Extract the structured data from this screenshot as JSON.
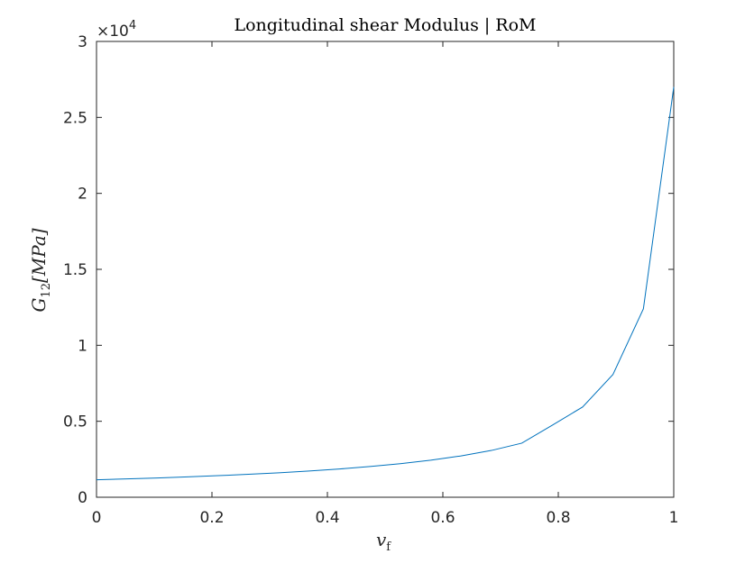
{
  "chart_data": {
    "type": "line",
    "title": "Longitudinal shear Modulus | RoM",
    "xlabel": {
      "base": "v",
      "sub": "f"
    },
    "ylabel": {
      "base": "G",
      "sub": "12",
      "unit": "[MPa]"
    },
    "xlim": [
      0,
      1
    ],
    "ylim": [
      0,
      30000
    ],
    "xticks": [
      0,
      0.2,
      0.4,
      0.6,
      0.8,
      1
    ],
    "xtick_labels": [
      "0",
      "0.2",
      "0.4",
      "0.6",
      "0.8",
      "1"
    ],
    "yticks": [
      0,
      5000,
      10000,
      15000,
      20000,
      25000,
      30000
    ],
    "ytick_labels": [
      "0",
      "0.5",
      "1",
      "1.5",
      "2",
      "2.5",
      "3"
    ],
    "y_exponent": {
      "times": "×10",
      "power": "4"
    },
    "grid": false,
    "line_color": "#0072BD",
    "series": [
      {
        "x": [
          0,
          0.0526,
          0.1053,
          0.1579,
          0.2105,
          0.2632,
          0.3158,
          0.3684,
          0.4211,
          0.4737,
          0.5263,
          0.5789,
          0.6316,
          0.6842,
          0.7368,
          0.7895,
          0.8421,
          0.8947,
          0.9474,
          1.0
        ],
        "values": [
          1150,
          1210,
          1270,
          1340,
          1420,
          1510,
          1610,
          1730,
          1860,
          2020,
          2210,
          2440,
          2720,
          3080,
          3560,
          4740,
          5940,
          8080,
          12400,
          27000
        ]
      }
    ]
  }
}
